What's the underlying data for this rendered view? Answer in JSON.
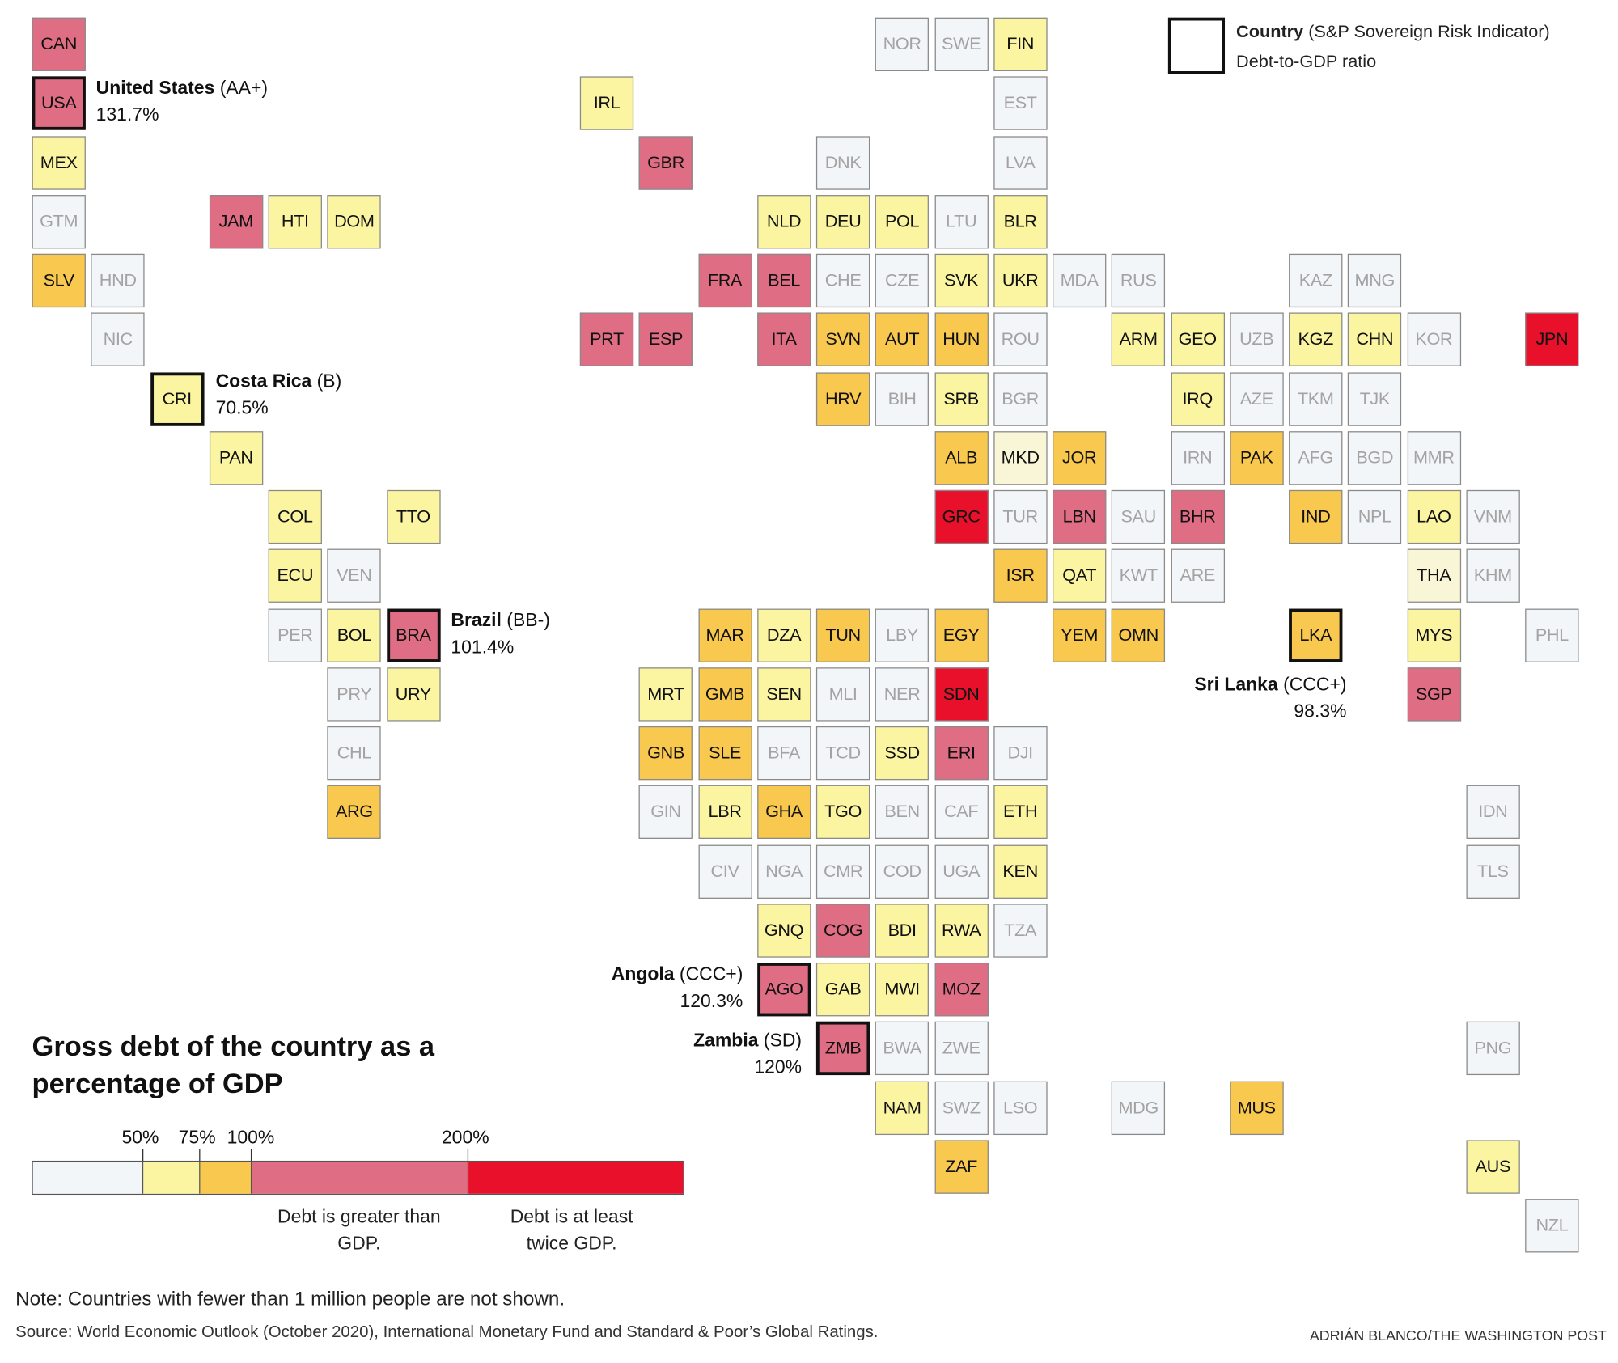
{
  "title": "Gross debt of the country as a percentage of GDP",
  "key": {
    "name_label": "Country",
    "rating_label": "(S&P Sovereign Risk Indicator)",
    "ratio_label": "Debt-to-GDP ratio"
  },
  "legend": {
    "ticks": [
      "50%",
      "75%",
      "100%",
      "200%"
    ],
    "bins": [
      {
        "cat": "n",
        "range": "<50%",
        "color": "#f3f6f9"
      },
      {
        "cat": "y",
        "range": "50-75%",
        "color": "#fbf5a2"
      },
      {
        "cat": "o",
        "range": "75-100%",
        "color": "#f9c94f"
      },
      {
        "cat": "p",
        "range": "100-200%",
        "color": "#df6d84"
      },
      {
        "cat": "r",
        "range": ">200%",
        "color": "#e8102a"
      }
    ],
    "note_greater": "Debt is greater than GDP.",
    "note_twice": "Debt is at least twice GDP."
  },
  "annotations": [
    {
      "code": "USA",
      "name": "United States",
      "rating": "(AA+)",
      "ratio": "131.7%"
    },
    {
      "code": "CRI",
      "name": "Costa Rica",
      "rating": "(B)",
      "ratio": "70.5%"
    },
    {
      "code": "BRA",
      "name": "Brazil",
      "rating": "(BB-)",
      "ratio": "101.4%"
    },
    {
      "code": "LKA",
      "name": "Sri Lanka",
      "rating": "(CCC+)",
      "ratio": "98.3%"
    },
    {
      "code": "AGO",
      "name": "Angola",
      "rating": "(CCC+)",
      "ratio": "120.3%"
    },
    {
      "code": "ZMB",
      "name": "Zambia",
      "rating": "(SD)",
      "ratio": "120%"
    }
  ],
  "countries": [
    {
      "code": "CAN",
      "cat": "p"
    },
    {
      "code": "USA",
      "cat": "p",
      "highlight": true
    },
    {
      "code": "MEX",
      "cat": "y"
    },
    {
      "code": "GTM",
      "cat": "n"
    },
    {
      "code": "SLV",
      "cat": "o"
    },
    {
      "code": "HND",
      "cat": "n"
    },
    {
      "code": "NIC",
      "cat": "n"
    },
    {
      "code": "CRI",
      "cat": "y",
      "highlight": true
    },
    {
      "code": "PAN",
      "cat": "y"
    },
    {
      "code": "COL",
      "cat": "y"
    },
    {
      "code": "TTO",
      "cat": "y"
    },
    {
      "code": "ECU",
      "cat": "y"
    },
    {
      "code": "VEN",
      "cat": "n"
    },
    {
      "code": "PER",
      "cat": "n"
    },
    {
      "code": "BOL",
      "cat": "y"
    },
    {
      "code": "BRA",
      "cat": "p",
      "highlight": true
    },
    {
      "code": "PRY",
      "cat": "n"
    },
    {
      "code": "URY",
      "cat": "y"
    },
    {
      "code": "CHL",
      "cat": "n"
    },
    {
      "code": "ARG",
      "cat": "o"
    },
    {
      "code": "JAM",
      "cat": "p"
    },
    {
      "code": "HTI",
      "cat": "y"
    },
    {
      "code": "DOM",
      "cat": "y"
    },
    {
      "code": "NOR",
      "cat": "n"
    },
    {
      "code": "SWE",
      "cat": "n"
    },
    {
      "code": "FIN",
      "cat": "y"
    },
    {
      "code": "IRL",
      "cat": "y"
    },
    {
      "code": "EST",
      "cat": "n"
    },
    {
      "code": "GBR",
      "cat": "p"
    },
    {
      "code": "DNK",
      "cat": "n"
    },
    {
      "code": "LVA",
      "cat": "n"
    },
    {
      "code": "NLD",
      "cat": "y"
    },
    {
      "code": "DEU",
      "cat": "y"
    },
    {
      "code": "POL",
      "cat": "y"
    },
    {
      "code": "LTU",
      "cat": "n"
    },
    {
      "code": "BLR",
      "cat": "y"
    },
    {
      "code": "FRA",
      "cat": "p"
    },
    {
      "code": "BEL",
      "cat": "p"
    },
    {
      "code": "CHE",
      "cat": "n"
    },
    {
      "code": "CZE",
      "cat": "n"
    },
    {
      "code": "SVK",
      "cat": "y"
    },
    {
      "code": "UKR",
      "cat": "y"
    },
    {
      "code": "MDA",
      "cat": "n"
    },
    {
      "code": "RUS",
      "cat": "n"
    },
    {
      "code": "KAZ",
      "cat": "n"
    },
    {
      "code": "MNG",
      "cat": "n"
    },
    {
      "code": "PRT",
      "cat": "p"
    },
    {
      "code": "ESP",
      "cat": "p"
    },
    {
      "code": "ITA",
      "cat": "p"
    },
    {
      "code": "SVN",
      "cat": "o"
    },
    {
      "code": "AUT",
      "cat": "o"
    },
    {
      "code": "HUN",
      "cat": "o"
    },
    {
      "code": "ROU",
      "cat": "n"
    },
    {
      "code": "ARM",
      "cat": "y"
    },
    {
      "code": "GEO",
      "cat": "y"
    },
    {
      "code": "UZB",
      "cat": "n"
    },
    {
      "code": "KGZ",
      "cat": "y"
    },
    {
      "code": "CHN",
      "cat": "y"
    },
    {
      "code": "KOR",
      "cat": "n"
    },
    {
      "code": "JPN",
      "cat": "r"
    },
    {
      "code": "HRV",
      "cat": "o"
    },
    {
      "code": "BIH",
      "cat": "n"
    },
    {
      "code": "SRB",
      "cat": "y"
    },
    {
      "code": "BGR",
      "cat": "n"
    },
    {
      "code": "IRQ",
      "cat": "y"
    },
    {
      "code": "AZE",
      "cat": "n"
    },
    {
      "code": "TKM",
      "cat": "n"
    },
    {
      "code": "TJK",
      "cat": "n"
    },
    {
      "code": "ALB",
      "cat": "o"
    },
    {
      "code": "MKD",
      "cat": "c"
    },
    {
      "code": "JOR",
      "cat": "o"
    },
    {
      "code": "IRN",
      "cat": "n"
    },
    {
      "code": "PAK",
      "cat": "o"
    },
    {
      "code": "AFG",
      "cat": "n"
    },
    {
      "code": "BGD",
      "cat": "n"
    },
    {
      "code": "MMR",
      "cat": "n"
    },
    {
      "code": "GRC",
      "cat": "r"
    },
    {
      "code": "TUR",
      "cat": "n"
    },
    {
      "code": "LBN",
      "cat": "p"
    },
    {
      "code": "SAU",
      "cat": "n"
    },
    {
      "code": "BHR",
      "cat": "p"
    },
    {
      "code": "IND",
      "cat": "o"
    },
    {
      "code": "NPL",
      "cat": "n"
    },
    {
      "code": "LAO",
      "cat": "y"
    },
    {
      "code": "VNM",
      "cat": "n"
    },
    {
      "code": "ISR",
      "cat": "o"
    },
    {
      "code": "QAT",
      "cat": "y"
    },
    {
      "code": "KWT",
      "cat": "n"
    },
    {
      "code": "ARE",
      "cat": "n"
    },
    {
      "code": "THA",
      "cat": "c"
    },
    {
      "code": "KHM",
      "cat": "n"
    },
    {
      "code": "MAR",
      "cat": "o"
    },
    {
      "code": "DZA",
      "cat": "y"
    },
    {
      "code": "TUN",
      "cat": "o"
    },
    {
      "code": "LBY",
      "cat": "n"
    },
    {
      "code": "EGY",
      "cat": "o"
    },
    {
      "code": "YEM",
      "cat": "o"
    },
    {
      "code": "OMN",
      "cat": "o"
    },
    {
      "code": "LKA",
      "cat": "o",
      "highlight": true
    },
    {
      "code": "MYS",
      "cat": "y"
    },
    {
      "code": "PHL",
      "cat": "n"
    },
    {
      "code": "MRT",
      "cat": "y"
    },
    {
      "code": "GMB",
      "cat": "o"
    },
    {
      "code": "SEN",
      "cat": "y"
    },
    {
      "code": "MLI",
      "cat": "n"
    },
    {
      "code": "NER",
      "cat": "n"
    },
    {
      "code": "SDN",
      "cat": "r"
    },
    {
      "code": "SGP",
      "cat": "p"
    },
    {
      "code": "GNB",
      "cat": "o"
    },
    {
      "code": "SLE",
      "cat": "o"
    },
    {
      "code": "BFA",
      "cat": "n"
    },
    {
      "code": "TCD",
      "cat": "n"
    },
    {
      "code": "SSD",
      "cat": "y"
    },
    {
      "code": "ERI",
      "cat": "p"
    },
    {
      "code": "DJI",
      "cat": "n"
    },
    {
      "code": "GIN",
      "cat": "n"
    },
    {
      "code": "LBR",
      "cat": "y"
    },
    {
      "code": "GHA",
      "cat": "o"
    },
    {
      "code": "TGO",
      "cat": "y"
    },
    {
      "code": "BEN",
      "cat": "n"
    },
    {
      "code": "CAF",
      "cat": "n"
    },
    {
      "code": "ETH",
      "cat": "y"
    },
    {
      "code": "IDN",
      "cat": "n"
    },
    {
      "code": "CIV",
      "cat": "n"
    },
    {
      "code": "NGA",
      "cat": "n"
    },
    {
      "code": "CMR",
      "cat": "n"
    },
    {
      "code": "COD",
      "cat": "n"
    },
    {
      "code": "UGA",
      "cat": "n"
    },
    {
      "code": "KEN",
      "cat": "y"
    },
    {
      "code": "TLS",
      "cat": "n"
    },
    {
      "code": "GNQ",
      "cat": "y"
    },
    {
      "code": "COG",
      "cat": "p"
    },
    {
      "code": "BDI",
      "cat": "y"
    },
    {
      "code": "RWA",
      "cat": "y"
    },
    {
      "code": "TZA",
      "cat": "n"
    },
    {
      "code": "AGO",
      "cat": "p",
      "highlight": true
    },
    {
      "code": "GAB",
      "cat": "y"
    },
    {
      "code": "MWI",
      "cat": "y"
    },
    {
      "code": "MOZ",
      "cat": "p"
    },
    {
      "code": "ZMB",
      "cat": "p",
      "highlight": true
    },
    {
      "code": "BWA",
      "cat": "n"
    },
    {
      "code": "ZWE",
      "cat": "n"
    },
    {
      "code": "PNG",
      "cat": "n"
    },
    {
      "code": "NAM",
      "cat": "y"
    },
    {
      "code": "SWZ",
      "cat": "n"
    },
    {
      "code": "LSO",
      "cat": "n"
    },
    {
      "code": "MDG",
      "cat": "n"
    },
    {
      "code": "MUS",
      "cat": "o"
    },
    {
      "code": "ZAF",
      "cat": "o"
    },
    {
      "code": "AUS",
      "cat": "y"
    },
    {
      "code": "NZL",
      "cat": "n"
    }
  ],
  "footer": {
    "note": "Note: Countries with fewer than 1 million people are not shown.",
    "source": "Source:  World Economic Outlook (October 2020), International Monetary Fund and Standard & Poor’s Global Ratings.",
    "credit": "ADRIÁN BLANCO/THE WASHINGTON POST"
  }
}
